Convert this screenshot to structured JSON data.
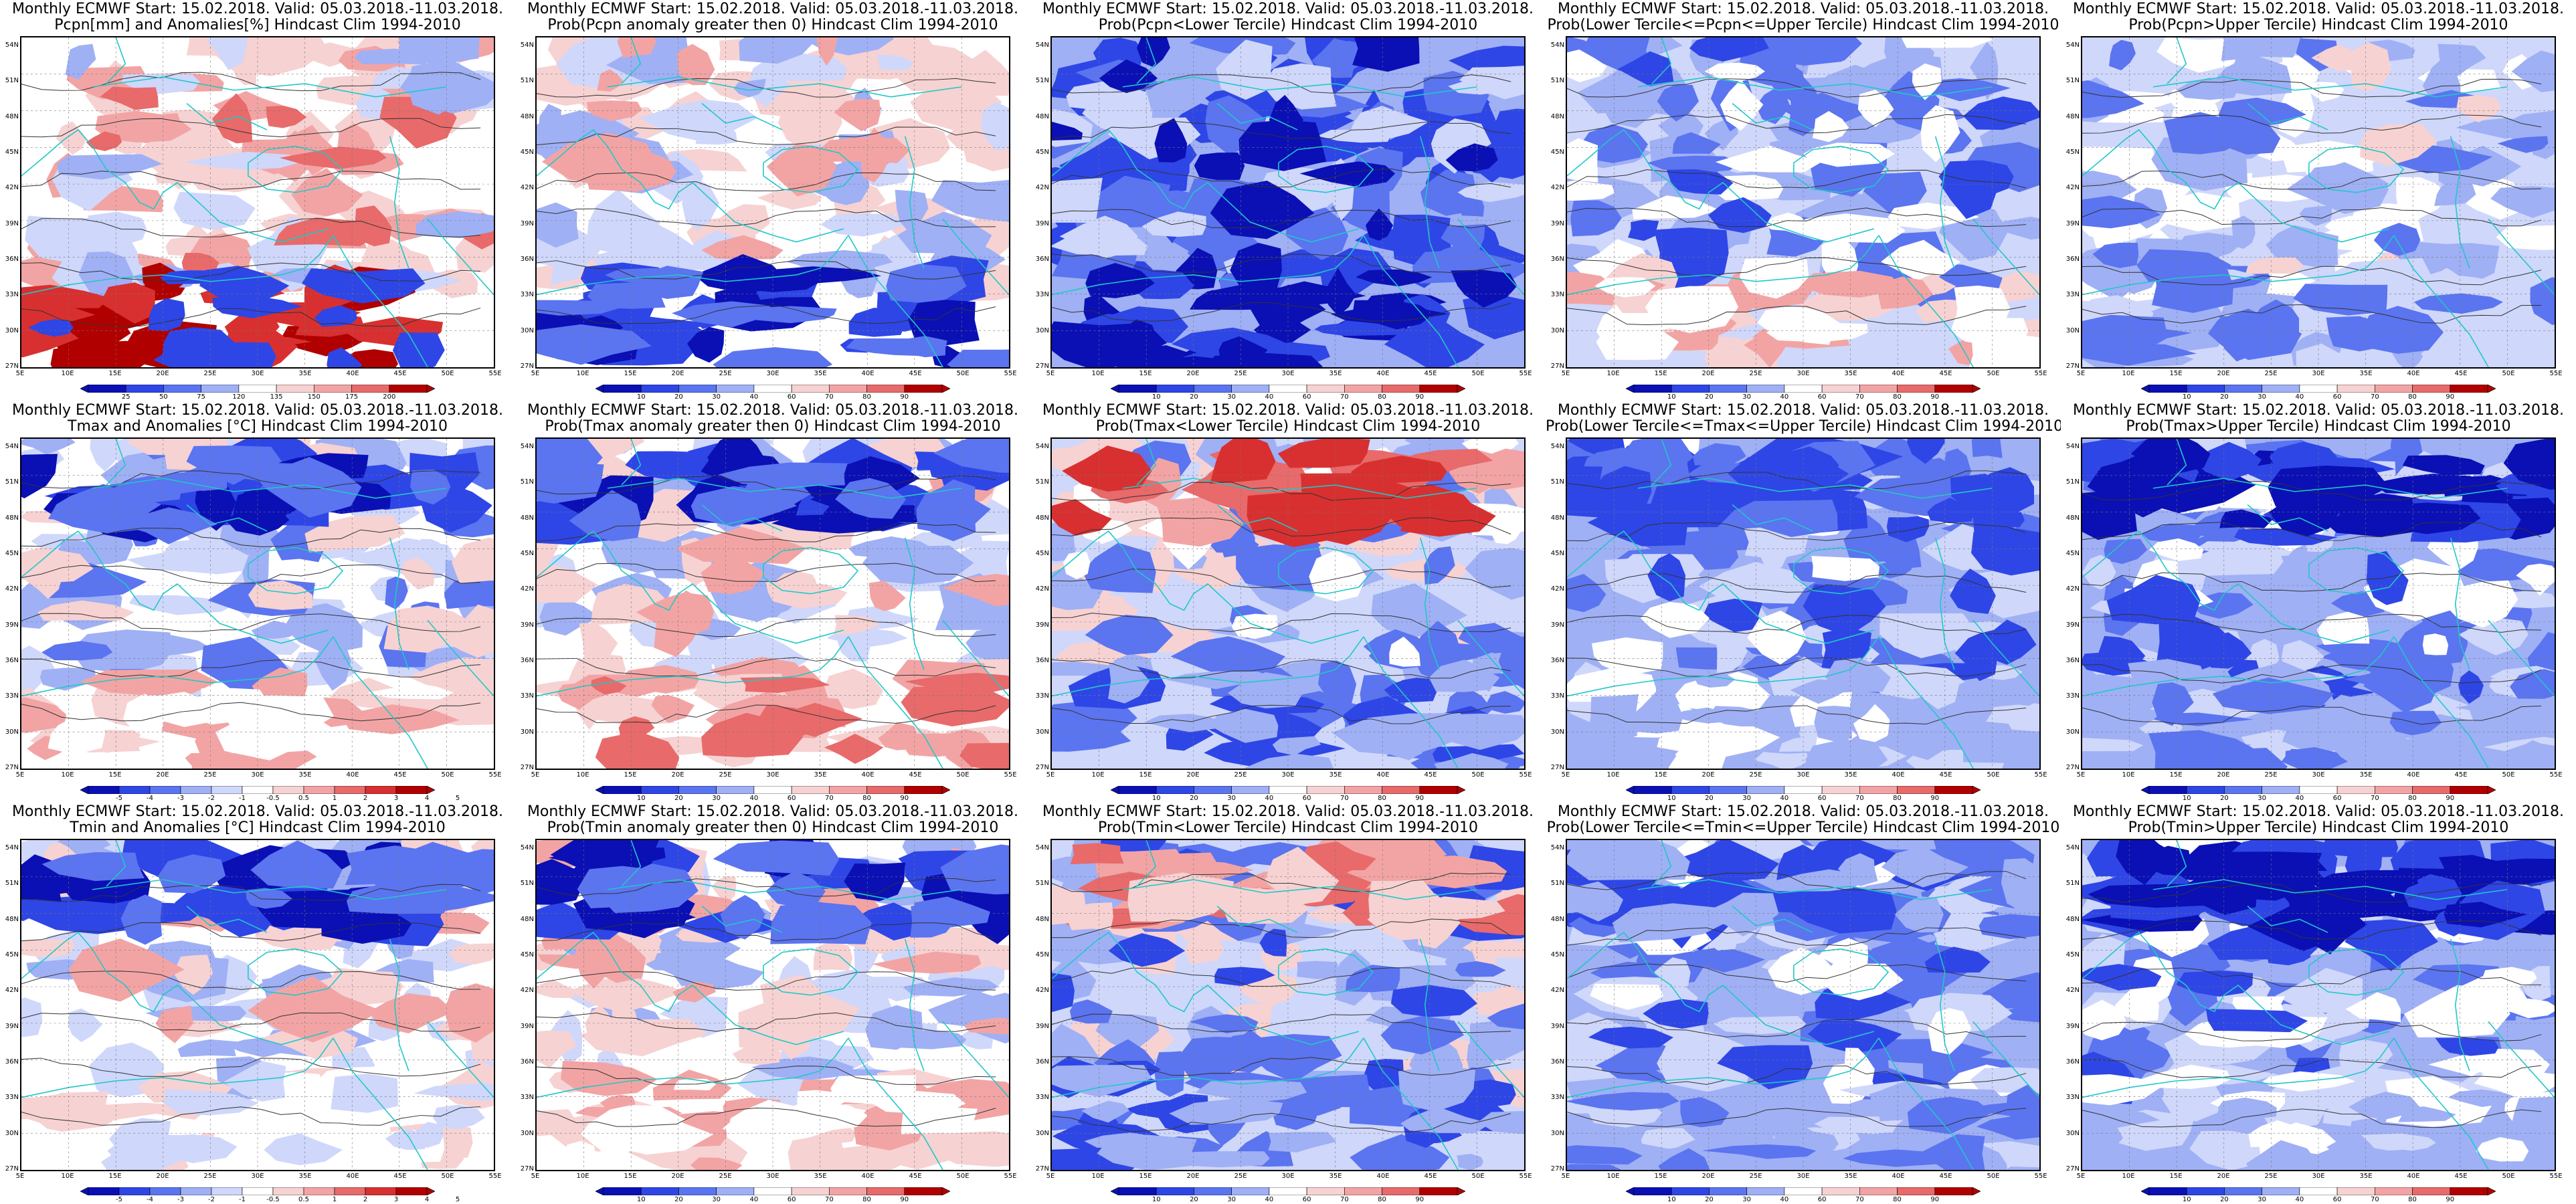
{
  "longitude_ticks": [
    "5E",
    "10E",
    "15E",
    "20E",
    "25E",
    "30E",
    "35E",
    "40E",
    "45E",
    "50E",
    "55E"
  ],
  "latitude_ticks": [
    "54N",
    "51N",
    "48N",
    "45N",
    "42N",
    "39N",
    "36N",
    "33N",
    "30N",
    "27N"
  ],
  "colors": {
    "blue_dark": "#0a10b4",
    "blue_mid": "#2e46e6",
    "blue": "#5b74f0",
    "blue_light": "#9fb0f5",
    "blue_pale": "#cfd7fb",
    "white": "#ffffff",
    "red_pale": "#f7d2d2",
    "red_light": "#f2a4a4",
    "red": "#e86a6a",
    "red_mid": "#d83030",
    "red_dark": "#b00000",
    "coast": "#20c8c8",
    "contour": "#333333"
  },
  "colorbars": {
    "pcpn_anom": {
      "labels": [
        "25",
        "50",
        "75",
        "120",
        "135",
        "150",
        "175",
        "200"
      ]
    },
    "prob": {
      "labels": [
        "10",
        "20",
        "30",
        "40",
        "60",
        "70",
        "80",
        "90"
      ]
    },
    "temp_anom": {
      "labels": [
        "-5",
        "-4",
        "-3",
        "-2",
        "-1",
        "-0.5",
        "0.5",
        "1",
        "2",
        "3",
        "4",
        "5"
      ]
    }
  },
  "panels": [
    {
      "row": 0,
      "col": 0,
      "line1": "Monthly ECMWF Start: 15.02.2018. Valid: 05.03.2018.-11.03.2018.",
      "line2": "Pcpn[mm] and Anomalies[%] Hindcast Clim 1994-2010",
      "scale": "pcpn_anom",
      "theme": "pcpn_anom"
    },
    {
      "row": 0,
      "col": 1,
      "line1": "Monthly ECMWF Start: 15.02.2018. Valid: 05.03.2018.-11.03.2018.",
      "line2": "Prob(Pcpn anomaly greater then 0) Hindcast Clim 1994-2010",
      "scale": "prob",
      "theme": "pcpn_pos"
    },
    {
      "row": 0,
      "col": 2,
      "line1": "Monthly ECMWF Start: 15.02.2018. Valid: 05.03.2018.-11.03.2018.",
      "line2": "Prob(Pcpn<Lower Tercile) Hindcast Clim 1994-2010",
      "scale": "prob",
      "theme": "pcpn_low"
    },
    {
      "row": 0,
      "col": 3,
      "line1": "Monthly ECMWF Start: 15.02.2018. Valid: 05.03.2018.-11.03.2018.",
      "line2": "Prob(Lower Tercile<=Pcpn<=Upper Tercile) Hindcast Clim 1994-2010",
      "scale": "prob",
      "theme": "pcpn_mid"
    },
    {
      "row": 0,
      "col": 4,
      "line1": "Monthly ECMWF Start: 15.02.2018. Valid: 05.03.2018.-11.03.2018.",
      "line2": "Prob(Pcpn>Upper Tercile) Hindcast Clim 1994-2010",
      "scale": "prob",
      "theme": "pcpn_up"
    },
    {
      "row": 1,
      "col": 0,
      "line1": "Monthly ECMWF Start: 15.02.2018. Valid: 05.03.2018.-11.03.2018.",
      "line2": "Tmax and Anomalies [°C] Hindcast Clim 1994-2010",
      "scale": "temp_anom",
      "theme": "t_anom"
    },
    {
      "row": 1,
      "col": 1,
      "line1": "Monthly ECMWF Start: 15.02.2018. Valid: 05.03.2018.-11.03.2018.",
      "line2": "Prob(Tmax anomaly greater then 0) Hindcast Clim 1994-2010",
      "scale": "prob",
      "theme": "t_pos"
    },
    {
      "row": 1,
      "col": 2,
      "line1": "Monthly ECMWF Start: 15.02.2018. Valid: 05.03.2018.-11.03.2018.",
      "line2": "Prob(Tmax<Lower Tercile) Hindcast Clim 1994-2010",
      "scale": "prob",
      "theme": "t_low"
    },
    {
      "row": 1,
      "col": 3,
      "line1": "Monthly ECMWF Start: 15.02.2018. Valid: 05.03.2018.-11.03.2018.",
      "line2": "Prob(Lower Tercile<=Tmax<=Upper Tercile) Hindcast Clim 1994-2010",
      "scale": "prob",
      "theme": "t_mid"
    },
    {
      "row": 1,
      "col": 4,
      "line1": "Monthly ECMWF Start: 15.02.2018. Valid: 05.03.2018.-11.03.2018.",
      "line2": "Prob(Tmax>Upper Tercile) Hindcast Clim 1994-2010",
      "scale": "prob",
      "theme": "t_up"
    },
    {
      "row": 2,
      "col": 0,
      "line1": "Monthly ECMWF Start: 15.02.2018. Valid: 05.03.2018.-11.03.2018.",
      "line2": "Tmin and Anomalies [°C] Hindcast Clim 1994-2010",
      "scale": "temp_anom",
      "theme": "tn_anom"
    },
    {
      "row": 2,
      "col": 1,
      "line1": "Monthly ECMWF Start: 15.02.2018. Valid: 05.03.2018.-11.03.2018.",
      "line2": "Prob(Tmin anomaly greater then 0) Hindcast Clim 1994-2010",
      "scale": "prob",
      "theme": "tn_pos"
    },
    {
      "row": 2,
      "col": 2,
      "line1": "Monthly ECMWF Start: 15.02.2018. Valid: 05.03.2018.-11.03.2018.",
      "line2": "Prob(Tmin<Lower Tercile) Hindcast Clim 1994-2010",
      "scale": "prob",
      "theme": "tn_low"
    },
    {
      "row": 2,
      "col": 3,
      "line1": "Monthly ECMWF Start: 15.02.2018. Valid: 05.03.2018.-11.03.2018.",
      "line2": "Prob(Lower Tercile<=Tmin<=Upper Tercile) Hindcast Clim 1994-2010",
      "scale": "prob",
      "theme": "tn_mid"
    },
    {
      "row": 2,
      "col": 4,
      "line1": "Monthly ECMWF Start: 15.02.2018. Valid: 05.03.2018.-11.03.2018.",
      "line2": "Prob(Tmin>Upper Tercile) Hindcast Clim 1994-2010",
      "scale": "prob",
      "theme": "tn_up"
    }
  ]
}
